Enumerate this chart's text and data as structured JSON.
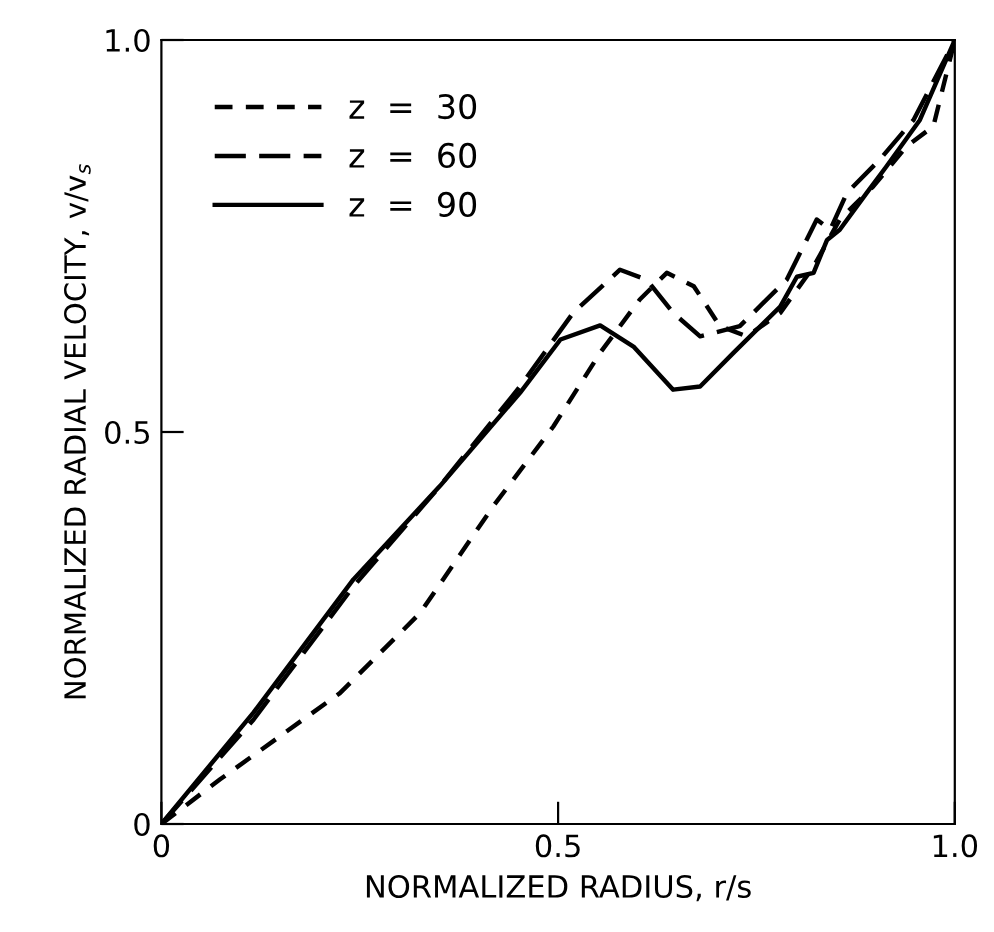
{
  "chart_data": {
    "type": "line",
    "xlabel": "NORMALIZED RADIUS, r/s",
    "ylabel": "NORMALIZED RADIAL VELOCITY, v/v$_{s}$",
    "xlim": [
      0,
      1.0
    ],
    "ylim": [
      0,
      1.0
    ],
    "xticks": [
      0,
      {
        "value": 0.5,
        "label": "0.5"
      },
      {
        "value": 1.0,
        "label": "1.0"
      }
    ],
    "yticks": [
      0,
      {
        "value": 0.5,
        "label": "0.5"
      },
      {
        "value": 1.0,
        "label": "1.0"
      }
    ],
    "grid": false,
    "legend": "top left",
    "marker": "none",
    "series": [
      {
        "name": "z  =  30",
        "color": "#000000",
        "line_style": "dotted",
        "x": [
          0,
          0.074,
          0.225,
          0.326,
          0.418,
          0.494,
          0.553,
          0.603,
          0.637,
          0.671,
          0.704,
          0.738,
          0.78,
          0.822,
          0.855,
          0.897,
          0.939,
          0.973,
          1.0
        ],
        "values": [
          0,
          0.057,
          0.167,
          0.269,
          0.405,
          0.507,
          0.601,
          0.669,
          0.703,
          0.686,
          0.635,
          0.622,
          0.652,
          0.711,
          0.771,
          0.813,
          0.864,
          0.89,
          1.0
        ]
      },
      {
        "name": "z  =  60",
        "color": "#000000",
        "line_style": "dashed",
        "x": [
          0,
          0.116,
          0.242,
          0.351,
          0.452,
          0.519,
          0.578,
          0.612,
          0.645,
          0.679,
          0.729,
          0.788,
          0.826,
          0.843,
          0.864,
          0.905,
          0.948,
          1.0
        ],
        "values": [
          0,
          0.133,
          0.303,
          0.431,
          0.558,
          0.652,
          0.707,
          0.694,
          0.652,
          0.622,
          0.635,
          0.694,
          0.771,
          0.758,
          0.805,
          0.847,
          0.898,
          1.0
        ]
      },
      {
        "name": "z  =  90",
        "color": "#000000",
        "line_style": "solid",
        "x": [
          0,
          0.116,
          0.242,
          0.351,
          0.452,
          0.503,
          0.553,
          0.595,
          0.645,
          0.679,
          0.721,
          0.78,
          0.801,
          0.822,
          0.839,
          0.855,
          0.889,
          0.914,
          0.956,
          1.0
        ],
        "values": [
          0,
          0.142,
          0.312,
          0.431,
          0.55,
          0.618,
          0.636,
          0.609,
          0.554,
          0.558,
          0.601,
          0.66,
          0.698,
          0.703,
          0.745,
          0.758,
          0.805,
          0.839,
          0.898,
          1.0
        ]
      }
    ]
  }
}
